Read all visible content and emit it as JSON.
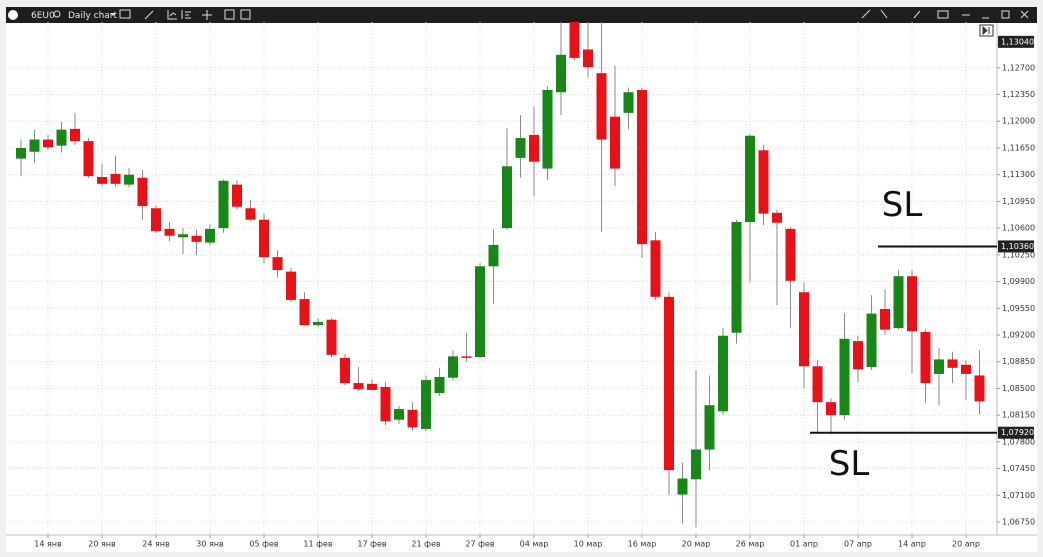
{
  "toolbar": {
    "symbol": "6EU0",
    "chart": "Daily chart"
  },
  "chart_data": {
    "type": "candlestick",
    "up_color": "#178717",
    "down_color": "#ea1018",
    "wick_color": "#8a8a8a",
    "grid": true,
    "ylim": [
      1.0658,
      1.133
    ],
    "yticks": [
      {
        "value": 1.127,
        "label": "1,12700"
      },
      {
        "value": 1.1235,
        "label": "1,12350"
      },
      {
        "value": 1.12,
        "label": "1,12000"
      },
      {
        "value": 1.1165,
        "label": "1,11650"
      },
      {
        "value": 1.113,
        "label": "1,11300"
      },
      {
        "value": 1.1095,
        "label": "1,10950"
      },
      {
        "value": 1.106,
        "label": "1,10600"
      },
      {
        "value": 1.1025,
        "label": "1,10250"
      },
      {
        "value": 1.099,
        "label": "1,09900"
      },
      {
        "value": 1.0955,
        "label": "1,09550"
      },
      {
        "value": 1.092,
        "label": "1,09200"
      },
      {
        "value": 1.0885,
        "label": "1,08850"
      },
      {
        "value": 1.085,
        "label": "1,08500"
      },
      {
        "value": 1.0815,
        "label": "1,08150"
      },
      {
        "value": 1.078,
        "label": "1,07800"
      },
      {
        "value": 1.0745,
        "label": "1,07450"
      },
      {
        "value": 1.071,
        "label": "1,07100"
      },
      {
        "value": 1.0675,
        "label": "1,06750"
      }
    ],
    "categories": [
      null,
      null,
      "14 янв",
      null,
      null,
      null,
      "20 янв",
      null,
      null,
      null,
      "24 янв",
      null,
      null,
      null,
      "30 янв",
      null,
      null,
      null,
      "05 фев",
      null,
      null,
      null,
      "11 фев",
      null,
      null,
      null,
      "17 фев",
      null,
      null,
      null,
      "21 фев",
      null,
      null,
      null,
      "27 фев",
      null,
      null,
      null,
      "04 мар",
      null,
      null,
      null,
      "10 мар",
      null,
      null,
      null,
      "16 мар",
      null,
      null,
      null,
      "20 мар",
      null,
      null,
      null,
      "26 мар",
      null,
      null,
      null,
      "01 апр",
      null,
      null,
      null,
      "07 апр",
      null,
      null,
      null,
      "14 апр",
      null,
      null,
      null,
      "20 апр",
      null
    ],
    "ohlc": [
      [
        1.1151,
        1.1176,
        1.1128,
        1.1165
      ],
      [
        1.116,
        1.1189,
        1.1145,
        1.1176
      ],
      [
        1.1176,
        1.1182,
        1.1162,
        1.1166
      ],
      [
        1.1168,
        1.1199,
        1.1159,
        1.1189
      ],
      [
        1.119,
        1.1211,
        1.1169,
        1.1174
      ],
      [
        1.1174,
        1.1178,
        1.1126,
        1.1128
      ],
      [
        1.1127,
        1.1144,
        1.1114,
        1.1118
      ],
      [
        1.1131,
        1.1155,
        1.1114,
        1.1118
      ],
      [
        1.1117,
        1.1139,
        1.1113,
        1.113
      ],
      [
        1.1126,
        1.1136,
        1.1071,
        1.1089
      ],
      [
        1.1086,
        1.109,
        1.1054,
        1.1056
      ],
      [
        1.1059,
        1.1068,
        1.1043,
        1.105
      ],
      [
        1.1048,
        1.106,
        1.1026,
        1.1052
      ],
      [
        1.105,
        1.1058,
        1.1025,
        1.1042
      ],
      [
        1.1041,
        1.1065,
        1.1037,
        1.1059
      ],
      [
        1.106,
        1.1124,
        1.1054,
        1.1122
      ],
      [
        1.1117,
        1.1123,
        1.1084,
        1.1088
      ],
      [
        1.1086,
        1.1097,
        1.1069,
        1.1071
      ],
      [
        1.1071,
        1.1079,
        1.1014,
        1.1022
      ],
      [
        1.1022,
        1.1031,
        1.0995,
        1.1005
      ],
      [
        1.1003,
        1.1008,
        1.0963,
        1.0966
      ],
      [
        1.0967,
        1.0976,
        1.0932,
        1.0933
      ],
      [
        1.0933,
        1.0942,
        1.093,
        1.0937
      ],
      [
        1.094,
        1.0942,
        1.0891,
        1.0894
      ],
      [
        1.089,
        1.0895,
        1.0854,
        1.0857
      ],
      [
        1.0857,
        1.0878,
        1.0847,
        1.0849
      ],
      [
        1.0856,
        1.0862,
        1.0847,
        1.0848
      ],
      [
        1.0852,
        1.0858,
        1.0802,
        1.0807
      ],
      [
        1.0809,
        1.0827,
        1.0803,
        1.0823
      ],
      [
        1.0822,
        1.0832,
        1.0794,
        1.0799
      ],
      [
        1.0797,
        1.0867,
        1.0794,
        1.0861
      ],
      [
        1.0844,
        1.0877,
        1.084,
        1.0865
      ],
      [
        1.0864,
        1.09,
        1.086,
        1.0892
      ],
      [
        1.0892,
        1.0923,
        1.0885,
        1.089
      ],
      [
        1.0891,
        1.1014,
        1.089,
        1.101
      ],
      [
        1.101,
        1.1058,
        1.0961,
        1.1038
      ],
      [
        1.106,
        1.1191,
        1.1058,
        1.1141
      ],
      [
        1.1152,
        1.1208,
        1.1126,
        1.1178
      ],
      [
        1.1182,
        1.1219,
        1.1102,
        1.1147
      ],
      [
        1.1138,
        1.1246,
        1.1123,
        1.1241
      ],
      [
        1.1238,
        1.133,
        1.1208,
        1.1287
      ],
      [
        1.133,
        1.133,
        1.128,
        1.1283
      ],
      [
        1.1294,
        1.133,
        1.1257,
        1.1271
      ],
      [
        1.1263,
        1.133,
        1.1055,
        1.1176
      ],
      [
        1.1206,
        1.1273,
        1.1115,
        1.1138
      ],
      [
        1.1211,
        1.1244,
        1.1189,
        1.1238
      ],
      [
        1.1241,
        1.1244,
        1.1021,
        1.1039
      ],
      [
        1.1044,
        1.1055,
        1.0966,
        1.097
      ],
      [
        1.097,
        1.0976,
        1.071,
        1.0743
      ],
      [
        1.0711,
        1.0753,
        1.0673,
        1.0732
      ],
      [
        1.0731,
        1.0874,
        1.0668,
        1.077
      ],
      [
        1.077,
        1.0867,
        1.0743,
        1.0828
      ],
      [
        1.082,
        1.0929,
        1.0816,
        1.0919
      ],
      [
        1.0923,
        1.1071,
        1.0909,
        1.1068
      ],
      [
        1.1068,
        1.1183,
        1.0989,
        1.1181
      ],
      [
        1.1162,
        1.1169,
        1.1064,
        1.1079
      ],
      [
        1.108,
        1.1084,
        1.0959,
        1.1067
      ],
      [
        1.1059,
        1.1062,
        1.0929,
        1.0991
      ],
      [
        1.0976,
        1.0989,
        1.085,
        1.0879
      ],
      [
        1.0879,
        1.0887,
        1.0793,
        1.0832
      ],
      [
        1.0832,
        1.0837,
        1.079,
        1.0815
      ],
      [
        1.0815,
        1.0949,
        1.0809,
        1.0915
      ],
      [
        1.0912,
        1.0919,
        1.0858,
        1.0875
      ],
      [
        1.0878,
        1.0972,
        1.0874,
        1.0948
      ],
      [
        1.0954,
        1.098,
        1.092,
        1.0927
      ],
      [
        1.0929,
        1.1005,
        1.0927,
        1.0997
      ],
      [
        1.0997,
        1.1005,
        1.087,
        1.0925
      ],
      [
        1.0924,
        1.0927,
        1.0831,
        1.0857
      ],
      [
        1.0869,
        1.0903,
        1.0828,
        1.0888
      ],
      [
        1.0888,
        1.0898,
        1.0857,
        1.0877
      ],
      [
        1.0881,
        1.0887,
        1.0835,
        1.0869
      ],
      [
        1.0867,
        1.09,
        1.0816,
        1.0833
      ]
    ],
    "price_marker": {
      "value": 1.1304,
      "label": "1,13040"
    },
    "levels": [
      {
        "value": 1.1036,
        "label": "1,10360",
        "text": "SL",
        "color": "#111111"
      },
      {
        "value": 1.0792,
        "label": "1,07920",
        "text": "SL",
        "color": "#111111"
      }
    ]
  }
}
